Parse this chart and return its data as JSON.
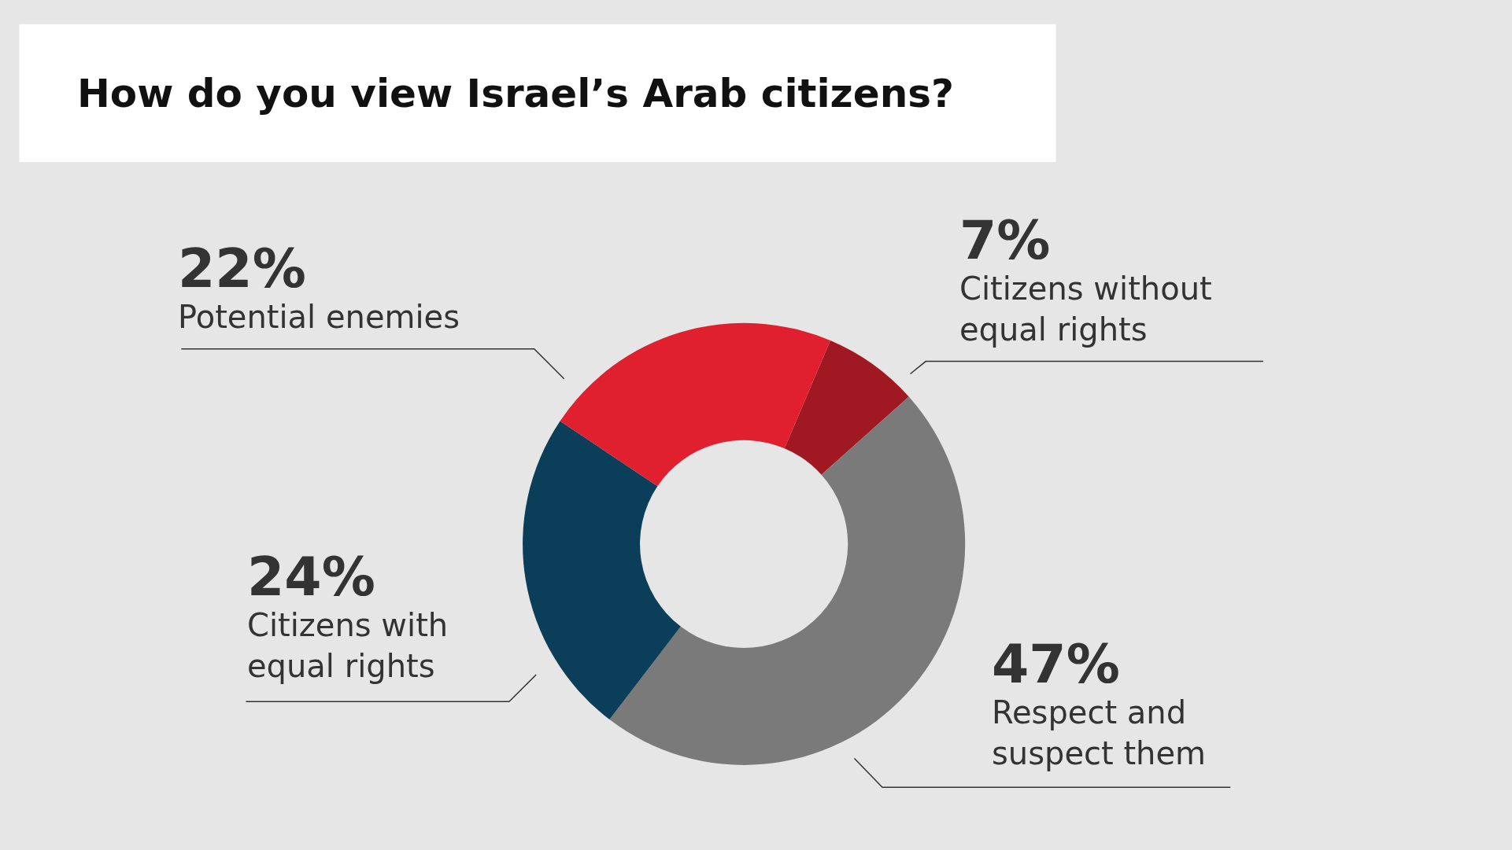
{
  "chart_data": {
    "type": "donut",
    "title": "How do you view Israel’s Arab citizens?",
    "categories": [
      "Citizens without equal rights",
      "Respect and suspect them",
      "Citizens with equal rights",
      "Potential enemies"
    ],
    "values": [
      7,
      47,
      24,
      22
    ],
    "value_labels": [
      "7%",
      "47%",
      "24%",
      "22%"
    ],
    "colors": [
      "#a01822",
      "#7a7a7a",
      "#0b3e58",
      "#e0202e"
    ],
    "legend": false
  }
}
